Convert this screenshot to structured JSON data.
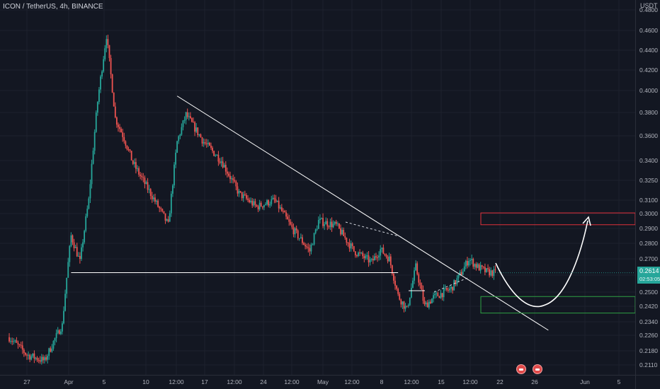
{
  "header": {
    "symbol_line": "ICON / TetherUS, 4h, BINANCE"
  },
  "price_axis": {
    "unit": "USDT",
    "ticks": [
      "0.4800",
      "0.4600",
      "0.4400",
      "0.4200",
      "0.4000",
      "0.3800",
      "0.3600",
      "0.3400",
      "0.3250",
      "0.3100",
      "0.3000",
      "0.2900",
      "0.2800",
      "0.2700",
      "0.2600",
      "0.2500",
      "0.2420",
      "0.2340",
      "0.2260",
      "0.2180",
      "0.2110"
    ]
  },
  "time_axis": {
    "ticks": [
      "27",
      "Apr",
      "5",
      "10",
      "12:00",
      "17",
      "12:00",
      "24",
      "12:00",
      "May",
      "12:00",
      "8",
      "12:00",
      "15",
      "12:00",
      "22",
      "26",
      "Jun",
      "5"
    ]
  },
  "last_price": {
    "value": "0.2614",
    "countdown": "02:53:05"
  },
  "colors": {
    "up": "#26a69a",
    "down": "#ef5350",
    "background": "#131722",
    "grid": "#1e222d",
    "annotation": "#ffffff",
    "resistance_zone": "#e0303a",
    "support_zone": "#2ea043",
    "event_flag": "#e04a4a"
  },
  "chart_data": {
    "type": "candlestick",
    "timeframe": "4h",
    "price_range": [
      0.207,
      0.48
    ],
    "series_close_path": [
      {
        "t": "Mar 25",
        "price": 0.225
      },
      {
        "t": "Mar 27",
        "price": 0.216
      },
      {
        "t": "Mar 29",
        "price": 0.213
      },
      {
        "t": "Mar 31",
        "price": 0.232
      },
      {
        "t": "Apr 1",
        "price": 0.285
      },
      {
        "t": "Apr 2",
        "price": 0.268
      },
      {
        "t": "Apr 3",
        "price": 0.31
      },
      {
        "t": "Apr 4",
        "price": 0.39
      },
      {
        "t": "Apr 5",
        "price": 0.455
      },
      {
        "t": "Apr 6",
        "price": 0.375
      },
      {
        "t": "Apr 7",
        "price": 0.358
      },
      {
        "t": "Apr 8",
        "price": 0.338
      },
      {
        "t": "Apr 10",
        "price": 0.315
      },
      {
        "t": "Apr 12",
        "price": 0.292
      },
      {
        "t": "Apr 13",
        "price": 0.355
      },
      {
        "t": "Apr 14",
        "price": 0.378
      },
      {
        "t": "Apr 16",
        "price": 0.355
      },
      {
        "t": "Apr 18",
        "price": 0.34
      },
      {
        "t": "Apr 20",
        "price": 0.315
      },
      {
        "t": "Apr 22",
        "price": 0.305
      },
      {
        "t": "Apr 24",
        "price": 0.31
      },
      {
        "t": "Apr 26",
        "price": 0.29
      },
      {
        "t": "Apr 28",
        "price": 0.275
      },
      {
        "t": "Apr 29",
        "price": 0.295
      },
      {
        "t": "May 1",
        "price": 0.292
      },
      {
        "t": "May 3",
        "price": 0.275
      },
      {
        "t": "May 5",
        "price": 0.268
      },
      {
        "t": "May 6",
        "price": 0.276
      },
      {
        "t": "May 7",
        "price": 0.27
      },
      {
        "t": "May 8",
        "price": 0.248
      },
      {
        "t": "May 9",
        "price": 0.24
      },
      {
        "t": "May 10",
        "price": 0.265
      },
      {
        "t": "May 11",
        "price": 0.242
      },
      {
        "t": "May 12",
        "price": 0.247
      },
      {
        "t": "May 14",
        "price": 0.252
      },
      {
        "t": "May 15",
        "price": 0.26
      },
      {
        "t": "May 16",
        "price": 0.27
      },
      {
        "t": "May 17",
        "price": 0.265
      },
      {
        "t": "May 18",
        "price": 0.262
      },
      {
        "t": "May 19",
        "price": 0.2614
      }
    ],
    "annotations": {
      "descending_trendline": [
        {
          "t": "Apr 13",
          "price": 0.395
        },
        {
          "t": "May 25",
          "price": 0.229
        }
      ],
      "horizontal_support": {
        "price": 0.2615,
        "from": "Apr 1",
        "to": "May 8"
      },
      "resistance_zone": [
        0.2925,
        0.3005
      ],
      "support_zone": [
        0.2385,
        0.2475
      ],
      "projected_path": "dip to ~0.2425 then rise to ~0.2935"
    },
    "grid": true
  }
}
